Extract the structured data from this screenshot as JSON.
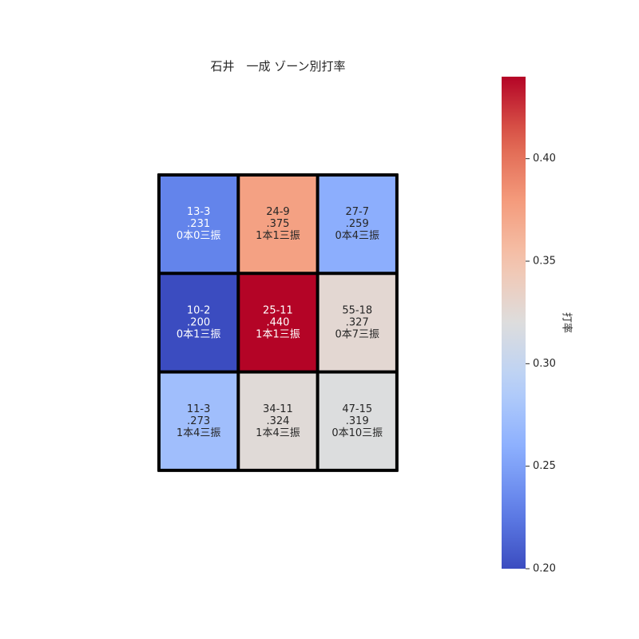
{
  "chart_data": {
    "type": "heatmap",
    "title": "石井　一成 ゾーン別打率",
    "colorbar_label": "打率",
    "colormap": "coolwarm",
    "vmin": 0.2,
    "vmax": 0.44,
    "colorbar_ticks": [
      "0.20",
      "0.25",
      "0.30",
      "0.35",
      "0.40"
    ],
    "colorbar_tick_values": [
      0.2,
      0.25,
      0.3,
      0.35,
      0.4
    ],
    "rows": 3,
    "cols": 3,
    "grid_line_color": "#000000",
    "text_light_color": "#ffffff",
    "text_dark_color": "#262626",
    "cells": [
      {
        "row": 0,
        "col": 0,
        "value": 0.231,
        "line1": "13-3",
        "line2": ".231",
        "line3": "0本0三振"
      },
      {
        "row": 0,
        "col": 1,
        "value": 0.375,
        "line1": "24-9",
        "line2": ".375",
        "line3": "1本1三振"
      },
      {
        "row": 0,
        "col": 2,
        "value": 0.259,
        "line1": "27-7",
        "line2": ".259",
        "line3": "0本4三振"
      },
      {
        "row": 1,
        "col": 0,
        "value": 0.2,
        "line1": "10-2",
        "line2": ".200",
        "line3": "0本1三振"
      },
      {
        "row": 1,
        "col": 1,
        "value": 0.44,
        "line1": "25-11",
        "line2": ".440",
        "line3": "1本1三振"
      },
      {
        "row": 1,
        "col": 2,
        "value": 0.327,
        "line1": "55-18",
        "line2": ".327",
        "line3": "0本7三振"
      },
      {
        "row": 2,
        "col": 0,
        "value": 0.273,
        "line1": "11-3",
        "line2": ".273",
        "line3": "1本4三振"
      },
      {
        "row": 2,
        "col": 1,
        "value": 0.324,
        "line1": "34-11",
        "line2": ".324",
        "line3": "1本4三振"
      },
      {
        "row": 2,
        "col": 2,
        "value": 0.319,
        "line1": "47-15",
        "line2": ".319",
        "line3": "0本10三振"
      }
    ]
  }
}
